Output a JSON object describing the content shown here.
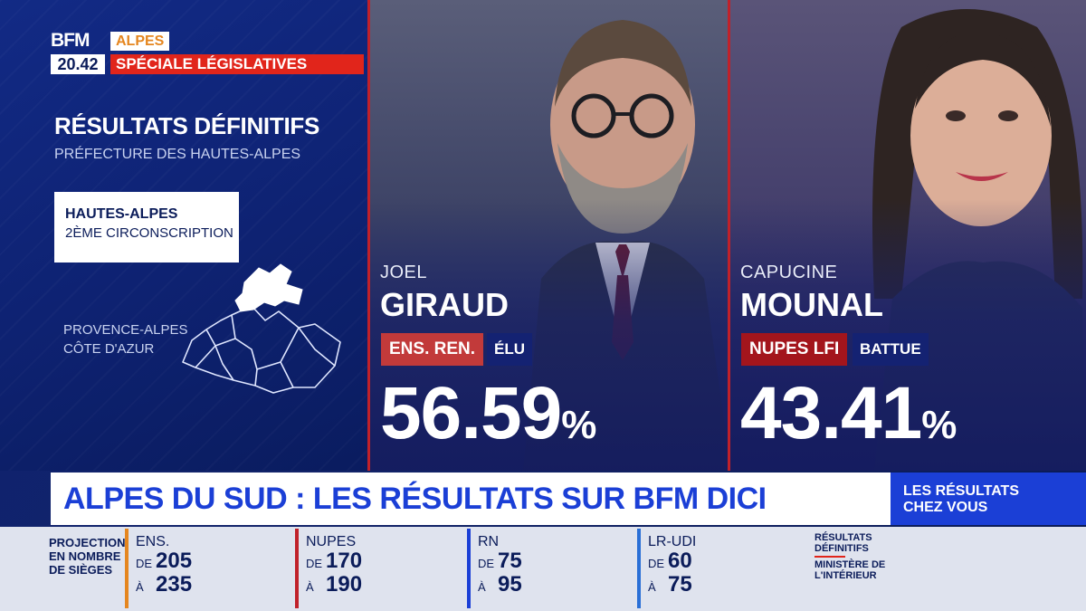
{
  "header": {
    "logo_text": "BFM",
    "time": "20.42",
    "channel": "ALPES",
    "special": "SPÉCIALE LÉGISLATIVES"
  },
  "left": {
    "title": "RÉSULTATS DÉFINITIFS",
    "subtitle": "PRÉFECTURE DES HAUTES-ALPES",
    "circ_line1": "HAUTES-ALPES",
    "circ_line2": "2ÈME CIRCONSCRIPTION",
    "region_line1": "PROVENCE-ALPES",
    "region_line2": "CÔTE D'AZUR"
  },
  "candidates": [
    {
      "first_name": "JOEL",
      "last_name": "GIRAUD",
      "party": "ENS. REN.",
      "party_color": "#c23a3a",
      "status": "ÉLU",
      "percent": "56.59",
      "percent_sign": "%"
    },
    {
      "first_name": "CAPUCINE",
      "last_name": "MOUNAL",
      "party": "NUPES LFI",
      "party_color": "#a3151c",
      "status": "BATTUE",
      "percent": "43.41",
      "percent_sign": "%"
    }
  ],
  "ticker": {
    "headline": "ALPES DU SUD : LES RÉSULTATS SUR BFM DICI",
    "side_line1": "LES RÉSULTATS",
    "side_line2": "CHEZ VOUS"
  },
  "projection": {
    "label_lines": [
      "PROJECTION",
      "EN NOMBRE",
      "DE SIÈGES"
    ],
    "from_label": "DE",
    "to_label": "À",
    "blocs": [
      {
        "name": "ENS.",
        "from": "205",
        "to": "235",
        "color": "#e5861f"
      },
      {
        "name": "NUPES",
        "from": "170",
        "to": "190",
        "color": "#c0212a"
      },
      {
        "name": "RN",
        "from": "75",
        "to": "95",
        "color": "#1b3fd6"
      },
      {
        "name": "LR-UDI",
        "from": "60",
        "to": "75",
        "color": "#2a6fd6"
      }
    ],
    "source_line1": "RÉSULTATS",
    "source_line2": "DÉFINITIFS",
    "source_line3": "MINISTÈRE DE",
    "source_line4": "L'INTÉRIEUR"
  }
}
